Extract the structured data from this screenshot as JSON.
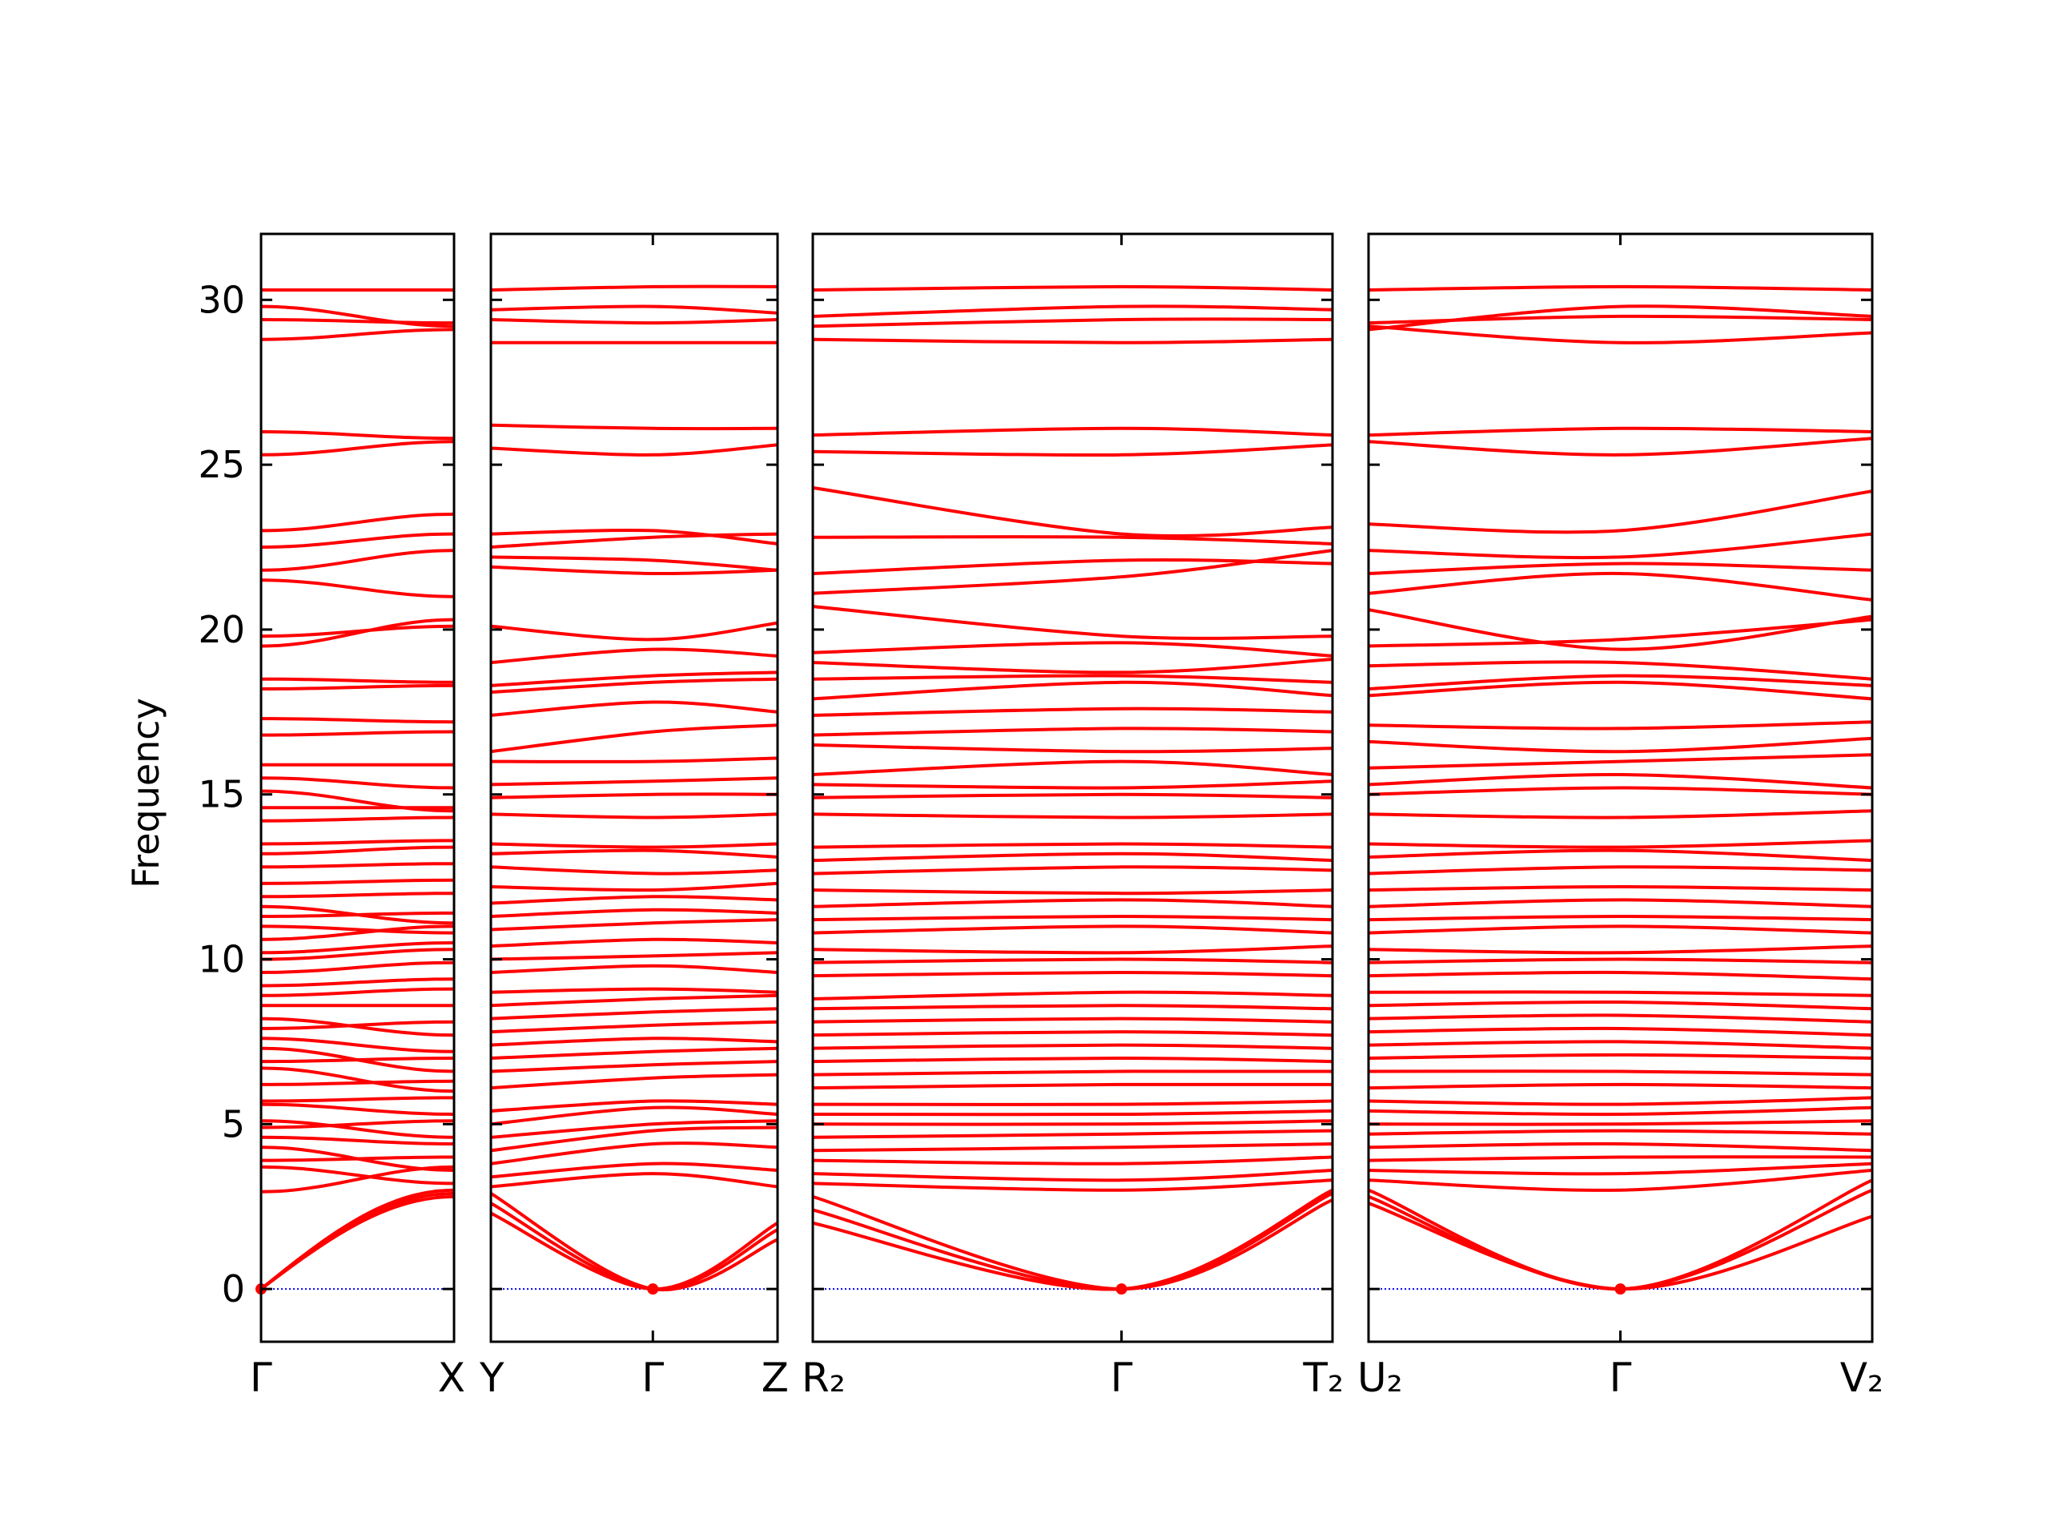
{
  "chart_data": {
    "type": "line",
    "title": "",
    "ylabel": "Frequency",
    "xlabel": "",
    "ylim": [
      -1.6,
      32
    ],
    "yticks": [
      0,
      5,
      10,
      15,
      20,
      25,
      30
    ],
    "grid": false,
    "legend": "none",
    "band_color": "#ff0000",
    "zero_line_color": "#0000ff",
    "zero_line_style": "dotted",
    "note": "",
    "panels": [
      {
        "path": [
          "Γ",
          "X"
        ],
        "kpoints": [
          {
            "label": "Γ",
            "x": 0
          },
          {
            "label": "X",
            "x": 1
          }
        ],
        "bands": [
          [
            0,
            3
          ],
          [
            0,
            2.9
          ],
          [
            0,
            2.8
          ],
          [
            2.95,
            3.7
          ],
          [
            3.7,
            3.2
          ],
          [
            3.9,
            4.0
          ],
          [
            4.3,
            3.6
          ],
          [
            4.6,
            4.4
          ],
          [
            4.9,
            5.1
          ],
          [
            5.1,
            4.6
          ],
          [
            5.6,
            5.3
          ],
          [
            5.7,
            5.8
          ],
          [
            6.2,
            6.3
          ],
          [
            6.7,
            6.0
          ],
          [
            6.9,
            7.0
          ],
          [
            7.3,
            6.6
          ],
          [
            7.6,
            7.2
          ],
          [
            7.9,
            8.1
          ],
          [
            8.2,
            7.7
          ],
          [
            8.6,
            8.6
          ],
          [
            8.9,
            9.1
          ],
          [
            9.2,
            9.4
          ],
          [
            9.6,
            9.9
          ],
          [
            10.0,
            10.3
          ],
          [
            10.2,
            10.5
          ],
          [
            10.6,
            11.0
          ],
          [
            11.0,
            10.8
          ],
          [
            11.3,
            11.4
          ],
          [
            11.6,
            11.1
          ],
          [
            11.9,
            12.0
          ],
          [
            12.3,
            12.4
          ],
          [
            12.8,
            12.9
          ],
          [
            13.2,
            13.4
          ],
          [
            13.5,
            13.6
          ],
          [
            14.2,
            14.3
          ],
          [
            14.6,
            14.6
          ],
          [
            15.1,
            14.5
          ],
          [
            15.5,
            15.2
          ],
          [
            15.9,
            15.9
          ],
          [
            16.8,
            16.9
          ],
          [
            17.3,
            17.2
          ],
          [
            18.2,
            18.3
          ],
          [
            18.5,
            18.4
          ],
          [
            19.5,
            20.3
          ],
          [
            19.8,
            20.1
          ],
          [
            21.5,
            21.0
          ],
          [
            21.8,
            22.4
          ],
          [
            22.5,
            22.9
          ],
          [
            23.0,
            23.5
          ],
          [
            25.3,
            25.7
          ],
          [
            26.0,
            25.8
          ],
          [
            28.8,
            29.1
          ],
          [
            29.4,
            29.3
          ],
          [
            29.8,
            29.2
          ],
          [
            30.3,
            30.3
          ]
        ]
      },
      {
        "path": [
          "Y",
          "Γ",
          "Z"
        ],
        "kpoints": [
          {
            "label": "Y",
            "x": 0
          },
          {
            "label": "Γ",
            "x": 0.565
          },
          {
            "label": "Z",
            "x": 1
          }
        ],
        "bands": [
          [
            2.3,
            0,
            2.0
          ],
          [
            2.6,
            0,
            1.8
          ],
          [
            2.9,
            0,
            1.5
          ],
          [
            3.1,
            3.5,
            3.1
          ],
          [
            3.4,
            3.8,
            3.6
          ],
          [
            3.8,
            4.4,
            4.3
          ],
          [
            4.2,
            4.8,
            4.9
          ],
          [
            4.6,
            5.0,
            5.1
          ],
          [
            5.0,
            5.5,
            5.3
          ],
          [
            5.4,
            5.7,
            5.6
          ],
          [
            6.1,
            6.4,
            6.5
          ],
          [
            6.6,
            6.8,
            6.9
          ],
          [
            7.0,
            7.2,
            7.3
          ],
          [
            7.4,
            7.6,
            7.5
          ],
          [
            7.8,
            8.0,
            8.1
          ],
          [
            8.2,
            8.4,
            8.5
          ],
          [
            8.6,
            8.8,
            8.9
          ],
          [
            9.0,
            9.1,
            9.0
          ],
          [
            9.6,
            9.8,
            9.6
          ],
          [
            10.0,
            10.1,
            10.2
          ],
          [
            10.4,
            10.6,
            10.5
          ],
          [
            10.9,
            11.1,
            11.2
          ],
          [
            11.3,
            11.5,
            11.4
          ],
          [
            11.7,
            11.9,
            11.8
          ],
          [
            12.2,
            12.1,
            12.3
          ],
          [
            12.8,
            12.6,
            12.7
          ],
          [
            13.2,
            13.3,
            13.1
          ],
          [
            13.5,
            13.4,
            13.5
          ],
          [
            14.4,
            14.3,
            14.4
          ],
          [
            14.9,
            15.0,
            15.0
          ],
          [
            15.3,
            15.4,
            15.5
          ],
          [
            16.0,
            16.0,
            16.1
          ],
          [
            16.3,
            16.9,
            17.1
          ],
          [
            17.4,
            17.8,
            17.5
          ],
          [
            18.1,
            18.4,
            18.5
          ],
          [
            18.3,
            18.6,
            18.7
          ],
          [
            19.0,
            19.4,
            19.2
          ],
          [
            20.1,
            19.7,
            20.2
          ],
          [
            21.9,
            21.7,
            21.8
          ],
          [
            22.2,
            22.1,
            21.8
          ],
          [
            22.5,
            22.8,
            22.9
          ],
          [
            22.9,
            23.0,
            22.6
          ],
          [
            25.5,
            25.3,
            25.6
          ],
          [
            26.2,
            26.1,
            26.1
          ],
          [
            28.7,
            28.7,
            28.7
          ],
          [
            29.4,
            29.3,
            29.4
          ],
          [
            29.7,
            29.8,
            29.6
          ],
          [
            30.3,
            30.4,
            30.4
          ]
        ]
      },
      {
        "path": [
          "R₂",
          "Γ",
          "T₂"
        ],
        "kpoints": [
          {
            "label": "R₂",
            "x": 0
          },
          {
            "label": "Γ",
            "x": 0.594
          },
          {
            "label": "T₂",
            "x": 1
          }
        ],
        "bands": [
          [
            2.0,
            0,
            3.0
          ],
          [
            2.4,
            0,
            2.9
          ],
          [
            2.8,
            0,
            2.7
          ],
          [
            3.2,
            3.0,
            3.3
          ],
          [
            3.5,
            3.3,
            3.6
          ],
          [
            3.9,
            3.8,
            4.0
          ],
          [
            4.2,
            4.3,
            4.4
          ],
          [
            4.6,
            4.7,
            4.8
          ],
          [
            5.0,
            5.0,
            5.1
          ],
          [
            5.3,
            5.3,
            5.4
          ],
          [
            5.6,
            5.6,
            5.7
          ],
          [
            6.1,
            6.2,
            6.2
          ],
          [
            6.5,
            6.6,
            6.6
          ],
          [
            6.9,
            7.0,
            6.9
          ],
          [
            7.3,
            7.4,
            7.3
          ],
          [
            7.7,
            7.8,
            7.7
          ],
          [
            8.1,
            8.2,
            8.1
          ],
          [
            8.5,
            8.6,
            8.5
          ],
          [
            8.8,
            9.0,
            8.9
          ],
          [
            9.5,
            9.6,
            9.5
          ],
          [
            9.9,
            10.0,
            9.9
          ],
          [
            10.3,
            10.2,
            10.4
          ],
          [
            10.8,
            11.0,
            10.8
          ],
          [
            11.2,
            11.3,
            11.2
          ],
          [
            11.6,
            11.8,
            11.6
          ],
          [
            12.1,
            12.0,
            12.1
          ],
          [
            12.6,
            12.8,
            12.7
          ],
          [
            13.0,
            13.2,
            13.0
          ],
          [
            13.4,
            13.5,
            13.4
          ],
          [
            14.4,
            14.3,
            14.4
          ],
          [
            14.9,
            15.0,
            14.9
          ],
          [
            15.3,
            15.2,
            15.4
          ],
          [
            15.6,
            16.0,
            15.6
          ],
          [
            16.5,
            16.3,
            16.4
          ],
          [
            16.8,
            17.0,
            16.9
          ],
          [
            17.4,
            17.6,
            17.5
          ],
          [
            17.9,
            18.4,
            18.0
          ],
          [
            18.5,
            18.6,
            18.4
          ],
          [
            19.0,
            18.7,
            19.1
          ],
          [
            19.3,
            19.6,
            19.2
          ],
          [
            20.7,
            19.8,
            19.8
          ],
          [
            21.1,
            21.6,
            22.4
          ],
          [
            21.7,
            22.1,
            22.0
          ],
          [
            22.8,
            22.8,
            22.6
          ],
          [
            24.3,
            22.9,
            23.1
          ],
          [
            25.4,
            25.3,
            25.6
          ],
          [
            25.9,
            26.1,
            25.9
          ],
          [
            28.8,
            28.7,
            28.8
          ],
          [
            29.2,
            29.4,
            29.4
          ],
          [
            29.5,
            29.8,
            29.7
          ],
          [
            30.3,
            30.4,
            30.3
          ]
        ]
      },
      {
        "path": [
          "U₂",
          "Γ",
          "V₂"
        ],
        "kpoints": [
          {
            "label": "U₂",
            "x": 0
          },
          {
            "label": "Γ",
            "x": 0.5
          },
          {
            "label": "V₂",
            "x": 1
          }
        ],
        "bands": [
          [
            2.6,
            0,
            2.2
          ],
          [
            2.8,
            0,
            3.0
          ],
          [
            3.0,
            0,
            3.3
          ],
          [
            3.3,
            3.0,
            3.6
          ],
          [
            3.6,
            3.5,
            3.8
          ],
          [
            3.9,
            4.0,
            4.0
          ],
          [
            4.3,
            4.4,
            4.2
          ],
          [
            4.7,
            4.8,
            4.7
          ],
          [
            5.0,
            5.0,
            5.1
          ],
          [
            5.4,
            5.3,
            5.5
          ],
          [
            5.7,
            5.6,
            5.8
          ],
          [
            6.1,
            6.2,
            6.1
          ],
          [
            6.6,
            6.6,
            6.5
          ],
          [
            7.0,
            7.1,
            7.0
          ],
          [
            7.4,
            7.5,
            7.3
          ],
          [
            7.8,
            7.9,
            7.7
          ],
          [
            8.2,
            8.3,
            8.1
          ],
          [
            8.6,
            8.7,
            8.5
          ],
          [
            9.0,
            9.0,
            8.9
          ],
          [
            9.5,
            9.6,
            9.4
          ],
          [
            9.9,
            10.0,
            9.9
          ],
          [
            10.3,
            10.2,
            10.4
          ],
          [
            10.8,
            11.0,
            10.8
          ],
          [
            11.2,
            11.3,
            11.2
          ],
          [
            11.6,
            11.8,
            11.6
          ],
          [
            12.1,
            12.2,
            12.1
          ],
          [
            12.6,
            12.8,
            12.7
          ],
          [
            13.1,
            13.3,
            13.0
          ],
          [
            13.5,
            13.4,
            13.6
          ],
          [
            14.4,
            14.3,
            14.5
          ],
          [
            15.0,
            15.2,
            15.0
          ],
          [
            15.3,
            15.6,
            15.2
          ],
          [
            15.8,
            16.0,
            16.2
          ],
          [
            16.6,
            16.3,
            16.7
          ],
          [
            17.1,
            17.0,
            17.2
          ],
          [
            18.0,
            18.4,
            17.9
          ],
          [
            18.2,
            18.6,
            18.3
          ],
          [
            18.9,
            19.0,
            18.5
          ],
          [
            19.5,
            19.7,
            20.3
          ],
          [
            20.6,
            19.4,
            20.4
          ],
          [
            21.1,
            21.7,
            20.9
          ],
          [
            21.7,
            22.0,
            21.8
          ],
          [
            22.4,
            22.2,
            22.9
          ],
          [
            23.2,
            23.0,
            24.2
          ],
          [
            25.7,
            25.3,
            25.8
          ],
          [
            25.9,
            26.1,
            26.0
          ],
          [
            29.2,
            28.7,
            29.0
          ],
          [
            29.3,
            29.5,
            29.4
          ],
          [
            29.1,
            29.8,
            29.5
          ],
          [
            30.3,
            30.4,
            30.3
          ]
        ]
      }
    ]
  }
}
